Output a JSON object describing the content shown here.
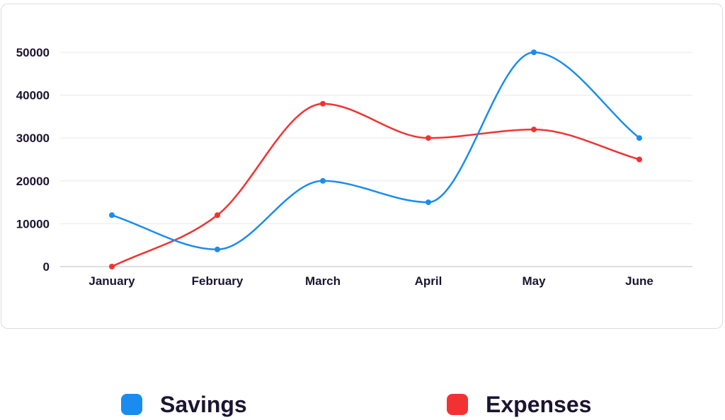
{
  "chart_data": {
    "type": "line",
    "categories": [
      "January",
      "February",
      "March",
      "April",
      "May",
      "June"
    ],
    "series": [
      {
        "name": "Savings",
        "color": "#1a8cf0",
        "values": [
          12000,
          4000,
          20000,
          15000,
          50000,
          30000
        ]
      },
      {
        "name": "Expenses",
        "color": "#f23232",
        "values": [
          0,
          12000,
          38000,
          30000,
          32000,
          25000
        ]
      }
    ],
    "yticks": [
      0,
      10000,
      20000,
      30000,
      40000,
      50000
    ],
    "ylim": [
      0,
      50000
    ],
    "grid": true,
    "legend_position": "bottom",
    "smooth": true
  }
}
